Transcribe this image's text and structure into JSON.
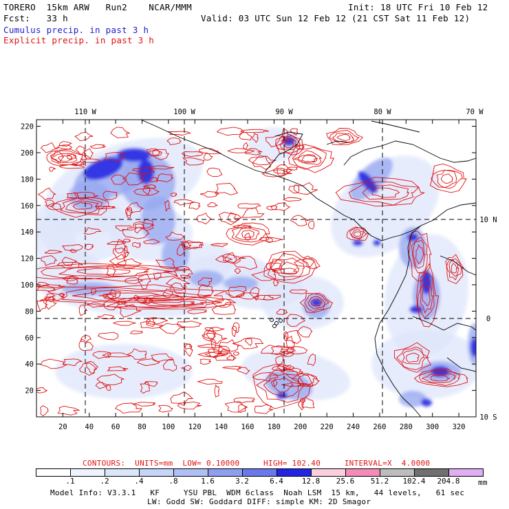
{
  "header": {
    "line1_left": "TORERO  15km ARW   Run2    NCAR/MMM",
    "line1_right": "Init: 18 UTC Fri 10 Feb 12",
    "line2_left": "Fcst:   33 h",
    "line2_right": "Valid: 03 UTC Sun 12 Feb 12 (21 CST Sat 11 Feb 12)",
    "line3": "Cumulus precip. in past 3 h",
    "line4": "Explicit precip. in past 3 h"
  },
  "map": {
    "lon_labels": [
      "110 W",
      "100 W",
      "90 W",
      "80 W",
      "70 W"
    ],
    "lat_labels": [
      "10 N",
      "0",
      "10 S"
    ],
    "y_ticks": [
      "220",
      "200",
      "180",
      "160",
      "140",
      "120",
      "100",
      "80",
      "60",
      "40",
      "20"
    ],
    "x_ticks": [
      "20",
      "40",
      "60",
      "80",
      "100",
      "120",
      "140",
      "160",
      "180",
      "200",
      "220",
      "240",
      "260",
      "280",
      "300",
      "320"
    ],
    "colors": {
      "contour": "#e01010",
      "coast": "#000000",
      "grid": "#000000",
      "shade_light": "#dde6fb",
      "shade_mid": "#9aaaf0",
      "shade_dark": "#2020e0"
    }
  },
  "contours_info": {
    "label": "CONTOURS:  UNITS=mm  LOW= 0.10000     HIGH= 102.40     INTERVAL=X  4.0000"
  },
  "colorbar": {
    "labels": [
      ".1",
      ".2",
      ".4",
      ".8",
      "1.6",
      "3.2",
      "6.4",
      "12.8",
      "25.6",
      "51.2",
      "102.4",
      "204.8"
    ],
    "colors": [
      "#ffffff",
      "#eef3fe",
      "#dce6fb",
      "#c6d4f8",
      "#b0c0f4",
      "#8e9ff0",
      "#6a78ea",
      "#2424e4",
      "#fbd0dc",
      "#f58cb8",
      "#bdbdbd",
      "#707070",
      "#e0aef2"
    ],
    "units": "mm"
  },
  "footer": {
    "line1": "Model Info: V3.3.1   KF     YSU PBL  WDM 6class  Noah LSM  15 km,   44 levels,   61 sec",
    "line2": "LW: Godd SW: Goddard DIFF: simple KM: 2D Smagor"
  }
}
